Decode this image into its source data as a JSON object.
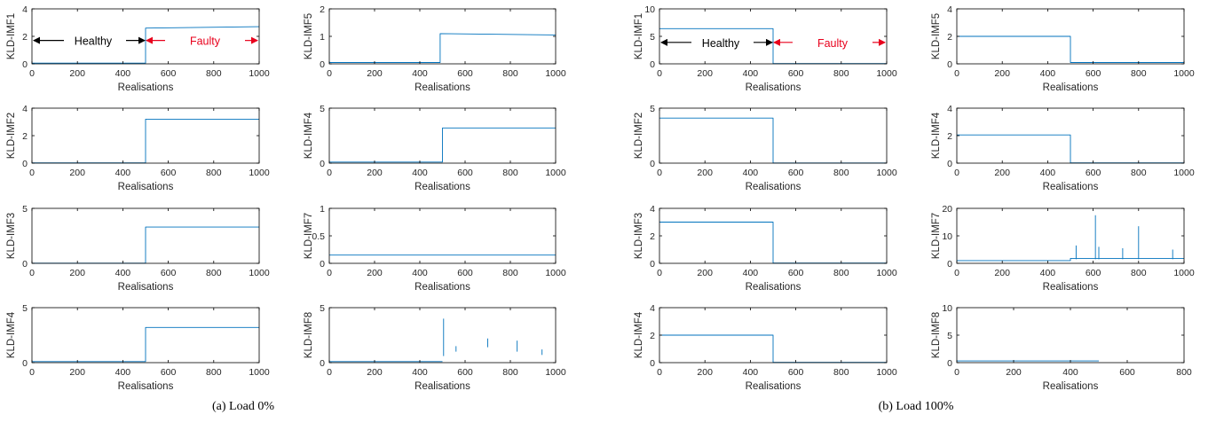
{
  "colors": {
    "series": "#0072BD",
    "healthy_arrow": "#000000",
    "faulty_arrow": "#e8001c",
    "axis": "#000000"
  },
  "captions": [
    "(a) Load 0%",
    "(b) Load 100%"
  ],
  "chart_data": [
    {
      "id": "a-imf1",
      "type": "line",
      "panel": "a",
      "ylabel": "KLD-IMF1",
      "xlabel": "Realisations",
      "xlim": [
        0,
        1000
      ],
      "ylim": [
        0,
        4
      ],
      "xticks": [
        0,
        200,
        400,
        600,
        800,
        1000
      ],
      "yticks": [
        0,
        2,
        4
      ],
      "points": [
        [
          0,
          0.05
        ],
        [
          500,
          0.05
        ],
        [
          500,
          2.6
        ],
        [
          1000,
          2.7
        ]
      ],
      "annotation": {
        "healthy": "Healthy",
        "faulty": "Faulty",
        "y": 1.7
      }
    },
    {
      "id": "a-imf5",
      "type": "line",
      "panel": "a",
      "ylabel": "KLD-IMF5",
      "xlabel": "Realisations",
      "xlim": [
        0,
        1000
      ],
      "ylim": [
        0,
        2
      ],
      "xticks": [
        0,
        200,
        400,
        600,
        800,
        1000
      ],
      "yticks": [
        0,
        1,
        2
      ],
      "points": [
        [
          0,
          0.05
        ],
        [
          490,
          0.05
        ],
        [
          490,
          1.1
        ],
        [
          1000,
          1.05
        ]
      ]
    },
    {
      "id": "a-imf2",
      "type": "line",
      "panel": "a",
      "ylabel": "KLD-IMF2",
      "xlabel": "Realisations",
      "xlim": [
        0,
        1000
      ],
      "ylim": [
        0,
        4
      ],
      "xticks": [
        0,
        200,
        400,
        600,
        800,
        1000
      ],
      "yticks": [
        0,
        2,
        4
      ],
      "points": [
        [
          0,
          0.02
        ],
        [
          500,
          0.02
        ],
        [
          500,
          3.2
        ],
        [
          1000,
          3.2
        ]
      ]
    },
    {
      "id": "a-imf4",
      "type": "line",
      "panel": "a",
      "ylabel": "KLD-IMF4",
      "xlabel": "Realisations",
      "xlim": [
        0,
        1000
      ],
      "ylim": [
        0,
        5
      ],
      "xticks": [
        0,
        200,
        400,
        600,
        800,
        1000
      ],
      "yticks": [
        0,
        5
      ],
      "points": [
        [
          0,
          0.1
        ],
        [
          500,
          0.1
        ],
        [
          500,
          3.2
        ],
        [
          1000,
          3.2
        ]
      ]
    },
    {
      "id": "a-imf3",
      "type": "line",
      "panel": "a",
      "ylabel": "KLD-IMF3",
      "xlabel": "Realisations",
      "xlim": [
        0,
        1000
      ],
      "ylim": [
        0,
        5
      ],
      "xticks": [
        0,
        200,
        400,
        600,
        800,
        1000
      ],
      "yticks": [
        0,
        5
      ],
      "points": [
        [
          0,
          0.02
        ],
        [
          500,
          0.02
        ],
        [
          500,
          3.3
        ],
        [
          1000,
          3.3
        ]
      ]
    },
    {
      "id": "a-imf7",
      "type": "line",
      "panel": "a",
      "ylabel": "KLD-IMF7",
      "xlabel": "Realisations",
      "xlim": [
        0,
        1000
      ],
      "ylim": [
        0,
        1
      ],
      "xticks": [
        0,
        200,
        400,
        600,
        800,
        1000
      ],
      "yticks": [
        0,
        0.5,
        1
      ],
      "points": [
        [
          0,
          0.15
        ],
        [
          1000,
          0.15
        ]
      ]
    },
    {
      "id": "a-imf4b",
      "type": "line",
      "panel": "a",
      "ylabel": "KLD-IMF4",
      "xlabel": "Realisations",
      "xlim": [
        0,
        1000
      ],
      "ylim": [
        0,
        5
      ],
      "xticks": [
        0,
        200,
        400,
        600,
        800,
        1000
      ],
      "yticks": [
        0,
        5
      ],
      "points": [
        [
          0,
          0.1
        ],
        [
          500,
          0.1
        ],
        [
          500,
          3.2
        ],
        [
          1000,
          3.2
        ]
      ]
    },
    {
      "id": "a-imf8",
      "type": "line",
      "panel": "a",
      "ylabel": "KLD-IMF8",
      "xlabel": "Realisations",
      "xlim": [
        0,
        1000
      ],
      "ylim": [
        0,
        5
      ],
      "xticks": [
        0,
        200,
        400,
        600,
        800,
        1000
      ],
      "yticks": [
        0,
        5
      ],
      "points": [
        [
          0,
          0.1
        ],
        [
          500,
          0.1
        ]
      ],
      "spikes": [
        [
          505,
          0.6,
          4.0
        ],
        [
          560,
          1.0,
          1.5
        ],
        [
          700,
          1.4,
          2.2
        ],
        [
          830,
          1.0,
          2.0
        ],
        [
          940,
          0.7,
          1.2
        ]
      ]
    },
    {
      "id": "b-imf1",
      "type": "line",
      "panel": "b",
      "ylabel": "KLD-IMF1",
      "xlabel": "Realisations",
      "xlim": [
        0,
        1000
      ],
      "ylim": [
        0,
        10
      ],
      "xticks": [
        0,
        200,
        400,
        600,
        800,
        1000
      ],
      "yticks": [
        0,
        5,
        10
      ],
      "points": [
        [
          0,
          6.4
        ],
        [
          500,
          6.4
        ],
        [
          500,
          0.05
        ],
        [
          1000,
          0.05
        ]
      ],
      "annotation": {
        "healthy": "Healthy",
        "faulty": "Faulty",
        "y": 3.9
      }
    },
    {
      "id": "b-imf5",
      "type": "line",
      "panel": "b",
      "ylabel": "KLD-IMF5",
      "xlabel": "Realisations",
      "xlim": [
        0,
        1000
      ],
      "ylim": [
        0,
        4
      ],
      "xticks": [
        0,
        200,
        400,
        600,
        800,
        1000
      ],
      "yticks": [
        0,
        2,
        4
      ],
      "points": [
        [
          0,
          2.0
        ],
        [
          500,
          2.0
        ],
        [
          500,
          0.1
        ],
        [
          1000,
          0.1
        ]
      ]
    },
    {
      "id": "b-imf2",
      "type": "line",
      "panel": "b",
      "ylabel": "KLD-IMF2",
      "xlabel": "Realisations",
      "xlim": [
        0,
        1000
      ],
      "ylim": [
        0,
        5
      ],
      "xticks": [
        0,
        200,
        400,
        600,
        800,
        1000
      ],
      "yticks": [
        0,
        5
      ],
      "points": [
        [
          0,
          4.1
        ],
        [
          500,
          4.1
        ],
        [
          500,
          0.02
        ],
        [
          1000,
          0.02
        ]
      ]
    },
    {
      "id": "b-imf4",
      "type": "line",
      "panel": "b",
      "ylabel": "KLD-IMF4",
      "xlabel": "Realisations",
      "xlim": [
        0,
        1000
      ],
      "ylim": [
        0,
        4
      ],
      "xticks": [
        0,
        200,
        400,
        600,
        800,
        1000
      ],
      "yticks": [
        0,
        2,
        4
      ],
      "points": [
        [
          0,
          2.05
        ],
        [
          500,
          2.05
        ],
        [
          500,
          0.02
        ],
        [
          1000,
          0.02
        ]
      ]
    },
    {
      "id": "b-imf3",
      "type": "line",
      "panel": "b",
      "ylabel": "KLD-IMF3",
      "xlabel": "Realisations",
      "xlim": [
        0,
        1000
      ],
      "ylim": [
        0,
        4
      ],
      "xticks": [
        0,
        200,
        400,
        600,
        800,
        1000
      ],
      "yticks": [
        0,
        2,
        4
      ],
      "points": [
        [
          0,
          3.0
        ],
        [
          500,
          3.0
        ],
        [
          500,
          0.02
        ],
        [
          1000,
          0.02
        ]
      ]
    },
    {
      "id": "b-imf7",
      "type": "line",
      "panel": "b",
      "ylabel": "KLD-IMF7",
      "xlabel": "Realisations",
      "xlim": [
        0,
        1000
      ],
      "ylim": [
        0,
        20
      ],
      "xticks": [
        0,
        200,
        400,
        600,
        800,
        1000
      ],
      "yticks": [
        0,
        10,
        20
      ],
      "points": [
        [
          0,
          1.0
        ],
        [
          500,
          1.0
        ],
        [
          500,
          1.8
        ],
        [
          1000,
          1.8
        ]
      ],
      "spikes": [
        [
          525,
          1.5,
          6.5
        ],
        [
          610,
          1.5,
          17.5
        ],
        [
          625,
          1.5,
          6.0
        ],
        [
          730,
          1.5,
          5.5
        ],
        [
          800,
          1.5,
          13.5
        ],
        [
          950,
          1.5,
          5.0
        ]
      ]
    },
    {
      "id": "b-imf4b",
      "type": "line",
      "panel": "b",
      "ylabel": "KLD-IMF4",
      "xlabel": "Realisations",
      "xlim": [
        0,
        1000
      ],
      "ylim": [
        0,
        4
      ],
      "xticks": [
        0,
        200,
        400,
        600,
        800,
        1000
      ],
      "yticks": [
        0,
        2,
        4
      ],
      "points": [
        [
          0,
          2.0
        ],
        [
          500,
          2.0
        ],
        [
          500,
          0.02
        ],
        [
          1000,
          0.02
        ]
      ]
    },
    {
      "id": "b-imf8",
      "type": "line",
      "panel": "b",
      "ylabel": "KLD-IMF8",
      "xlabel": "Realisations",
      "xlim": [
        0,
        800
      ],
      "ylim": [
        0,
        10
      ],
      "xticks": [
        0,
        200,
        400,
        600,
        800
      ],
      "yticks": [
        0,
        5,
        10
      ],
      "points": [
        [
          0,
          0.3
        ],
        [
          500,
          0.3
        ]
      ]
    }
  ]
}
